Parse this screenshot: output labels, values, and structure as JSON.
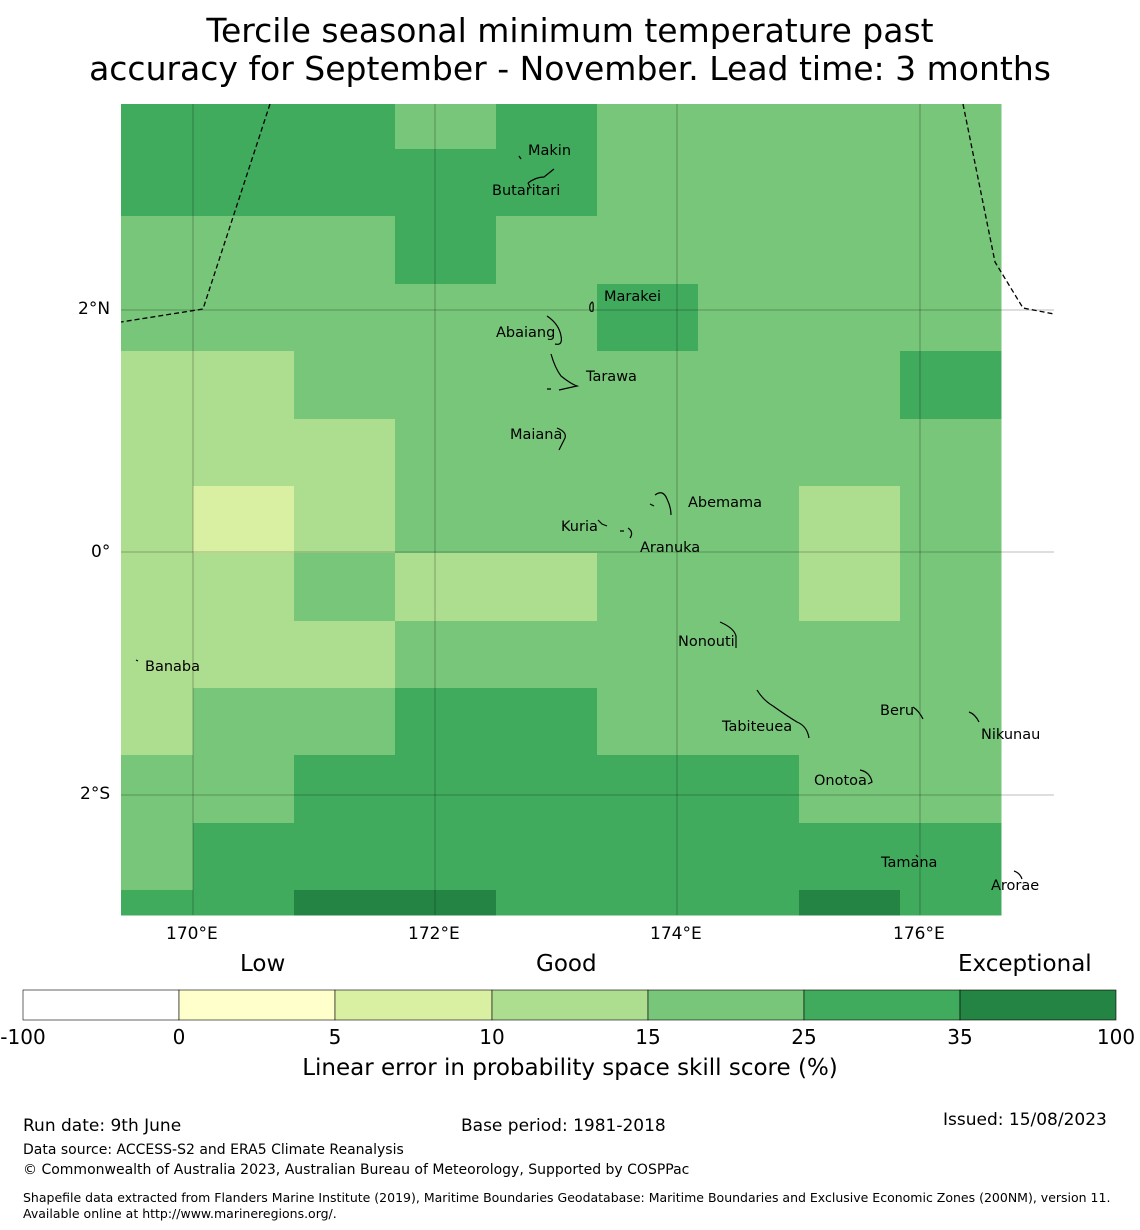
{
  "title": {
    "line1": "Tercile seasonal minimum temperature past",
    "line2": "accuracy for September - November. Lead time: 3 months"
  },
  "map": {
    "lat_labels": [
      "2°N",
      "0°",
      "2°S"
    ],
    "lon_labels": [
      "170°E",
      "172°E",
      "174°E",
      "176°E"
    ],
    "islands": [
      "Makin",
      "Butaritari",
      "Marakei",
      "Abaiang",
      "Tarawa",
      "Maiana",
      "Abemama",
      "Kuria",
      "Aranuka",
      "Banaba",
      "Nonouti",
      "Tabiteuea",
      "Beru",
      "Nikunau",
      "Onotoa",
      "Tamana",
      "Arorae"
    ],
    "category_colors": [
      "#ffffff",
      "#ffffcc",
      "#d9f0a3",
      "#addd8e",
      "#78c679",
      "#41ab5d",
      "#238443"
    ],
    "grid_categories": [
      [
        5,
        5,
        5,
        4,
        5,
        4,
        4,
        4,
        4
      ],
      [
        5,
        5,
        5,
        5,
        5,
        4,
        4,
        4,
        4
      ],
      [
        4,
        4,
        4,
        5,
        4,
        4,
        4,
        4,
        4
      ],
      [
        4,
        4,
        4,
        4,
        4,
        5,
        4,
        4,
        4
      ],
      [
        3,
        3,
        4,
        4,
        4,
        4,
        4,
        4,
        5
      ],
      [
        3,
        3,
        3,
        4,
        4,
        4,
        4,
        4,
        4
      ],
      [
        3,
        2,
        3,
        4,
        4,
        4,
        4,
        3,
        4
      ],
      [
        3,
        3,
        4,
        3,
        3,
        4,
        4,
        3,
        4
      ],
      [
        3,
        3,
        3,
        4,
        4,
        4,
        4,
        4,
        4
      ],
      [
        3,
        4,
        4,
        5,
        5,
        4,
        4,
        4,
        4
      ],
      [
        4,
        4,
        5,
        5,
        5,
        5,
        5,
        4,
        4
      ],
      [
        4,
        5,
        5,
        5,
        5,
        5,
        5,
        5,
        5
      ],
      [
        5,
        5,
        6,
        6,
        5,
        5,
        5,
        6,
        5
      ]
    ]
  },
  "colorbar": {
    "labels": [
      "Low",
      "Good",
      "Exceptional"
    ],
    "ticks": [
      "-100",
      "0",
      "5",
      "10",
      "15",
      "25",
      "35",
      "100"
    ],
    "xlabel": "Linear error in probability space skill score (%)"
  },
  "footer": {
    "run_date": "Run date: 9th June",
    "base_period": "Base period: 1981-2018",
    "issued": "Issued: 15/08/2023",
    "data_source": "Data source: ACCESS-S2 and ERA5 Climate Reanalysis",
    "copyright": "© Commonwealth of Australia 2023, Australian Bureau of Meteorology, Supported by COSPPac",
    "shapefile": "Shapefile data extracted from Flanders Marine Institute (2019), Maritime Boundaries Geodatabase: Maritime Boundaries and Exclusive Economic Zones (200NM), version 11. Available online at http://www.marineregions.org/."
  }
}
